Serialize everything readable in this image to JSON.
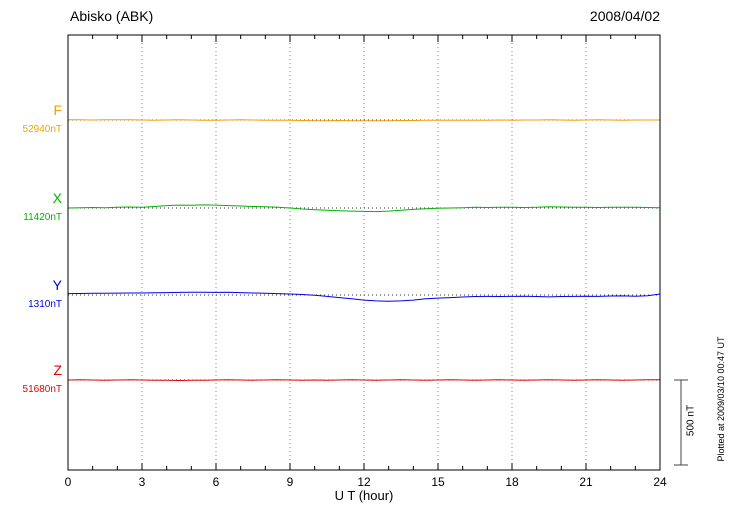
{
  "chart_data": {
    "type": "line",
    "station": "Abisko (ABK)",
    "date": "2008/04/02",
    "xlabel": "U T (hour)",
    "x_ticks": [
      0,
      3,
      6,
      9,
      12,
      15,
      18,
      21,
      24
    ],
    "x_range_hours": [
      0,
      24
    ],
    "sample_interval_hours": 0.5,
    "grid": "dotted-vertical-every-3h",
    "scale": {
      "label": "500 nT",
      "nT": 500
    },
    "plotted_note": "Plotted at 2009/03/10 00:47 UT",
    "series": [
      {
        "name": "F",
        "baseline_label": "52940nT",
        "baseline_nT": 52940,
        "color": "#F5A000",
        "offsets_nT": [
          2,
          1,
          0,
          1,
          2,
          1,
          0,
          -1,
          0,
          1,
          0,
          -1,
          -1,
          0,
          1,
          0,
          -1,
          -2,
          -2,
          -3,
          -4,
          -4,
          -3,
          -4,
          -5,
          -5,
          -4,
          -3,
          -3,
          -2,
          -2,
          -1,
          -1,
          -2,
          -1,
          0,
          -1,
          0,
          0,
          1,
          0,
          -1,
          0,
          1,
          0,
          -1,
          0,
          0,
          0
        ]
      },
      {
        "name": "X",
        "baseline_label": "11420nT",
        "baseline_nT": 11420,
        "color": "#00B400",
        "offsets_nT": [
          0,
          2,
          3,
          2,
          4,
          6,
          5,
          9,
          14,
          17,
          16,
          18,
          17,
          14,
          12,
          9,
          7,
          4,
          0,
          -6,
          -10,
          -13,
          -16,
          -18,
          -20,
          -21,
          -18,
          -13,
          -8,
          -5,
          -2,
          0,
          2,
          4,
          3,
          5,
          4,
          3,
          5,
          7,
          6,
          5,
          4,
          3,
          4,
          5,
          4,
          3,
          2
        ]
      },
      {
        "name": "Y",
        "baseline_label": "1310nT",
        "baseline_nT": 1310,
        "color": "#0000EE",
        "offsets_nT": [
          8,
          9,
          10,
          10,
          11,
          12,
          12,
          13,
          14,
          15,
          16,
          16,
          15,
          16,
          14,
          12,
          10,
          8,
          6,
          3,
          -2,
          -8,
          -15,
          -22,
          -30,
          -35,
          -37,
          -35,
          -30,
          -22,
          -18,
          -15,
          -12,
          -9,
          -8,
          -9,
          -8,
          -7,
          -9,
          -11,
          -9,
          -8,
          -7,
          -8,
          -6,
          -5,
          -7,
          -4,
          6
        ]
      },
      {
        "name": "Z",
        "baseline_label": "51680nT",
        "baseline_nT": 51680,
        "color": "#E60000",
        "offsets_nT": [
          0,
          1,
          0,
          -1,
          0,
          1,
          0,
          -1,
          -2,
          -3,
          -2,
          -1,
          0,
          1,
          0,
          -1,
          0,
          1,
          0,
          -1,
          0,
          -1,
          0,
          1,
          0,
          -1,
          0,
          1,
          0,
          -1,
          0,
          1,
          0,
          -1,
          0,
          1,
          0,
          -1,
          0,
          1,
          0,
          -1,
          0,
          1,
          0,
          -1,
          0,
          2,
          1
        ]
      }
    ]
  }
}
